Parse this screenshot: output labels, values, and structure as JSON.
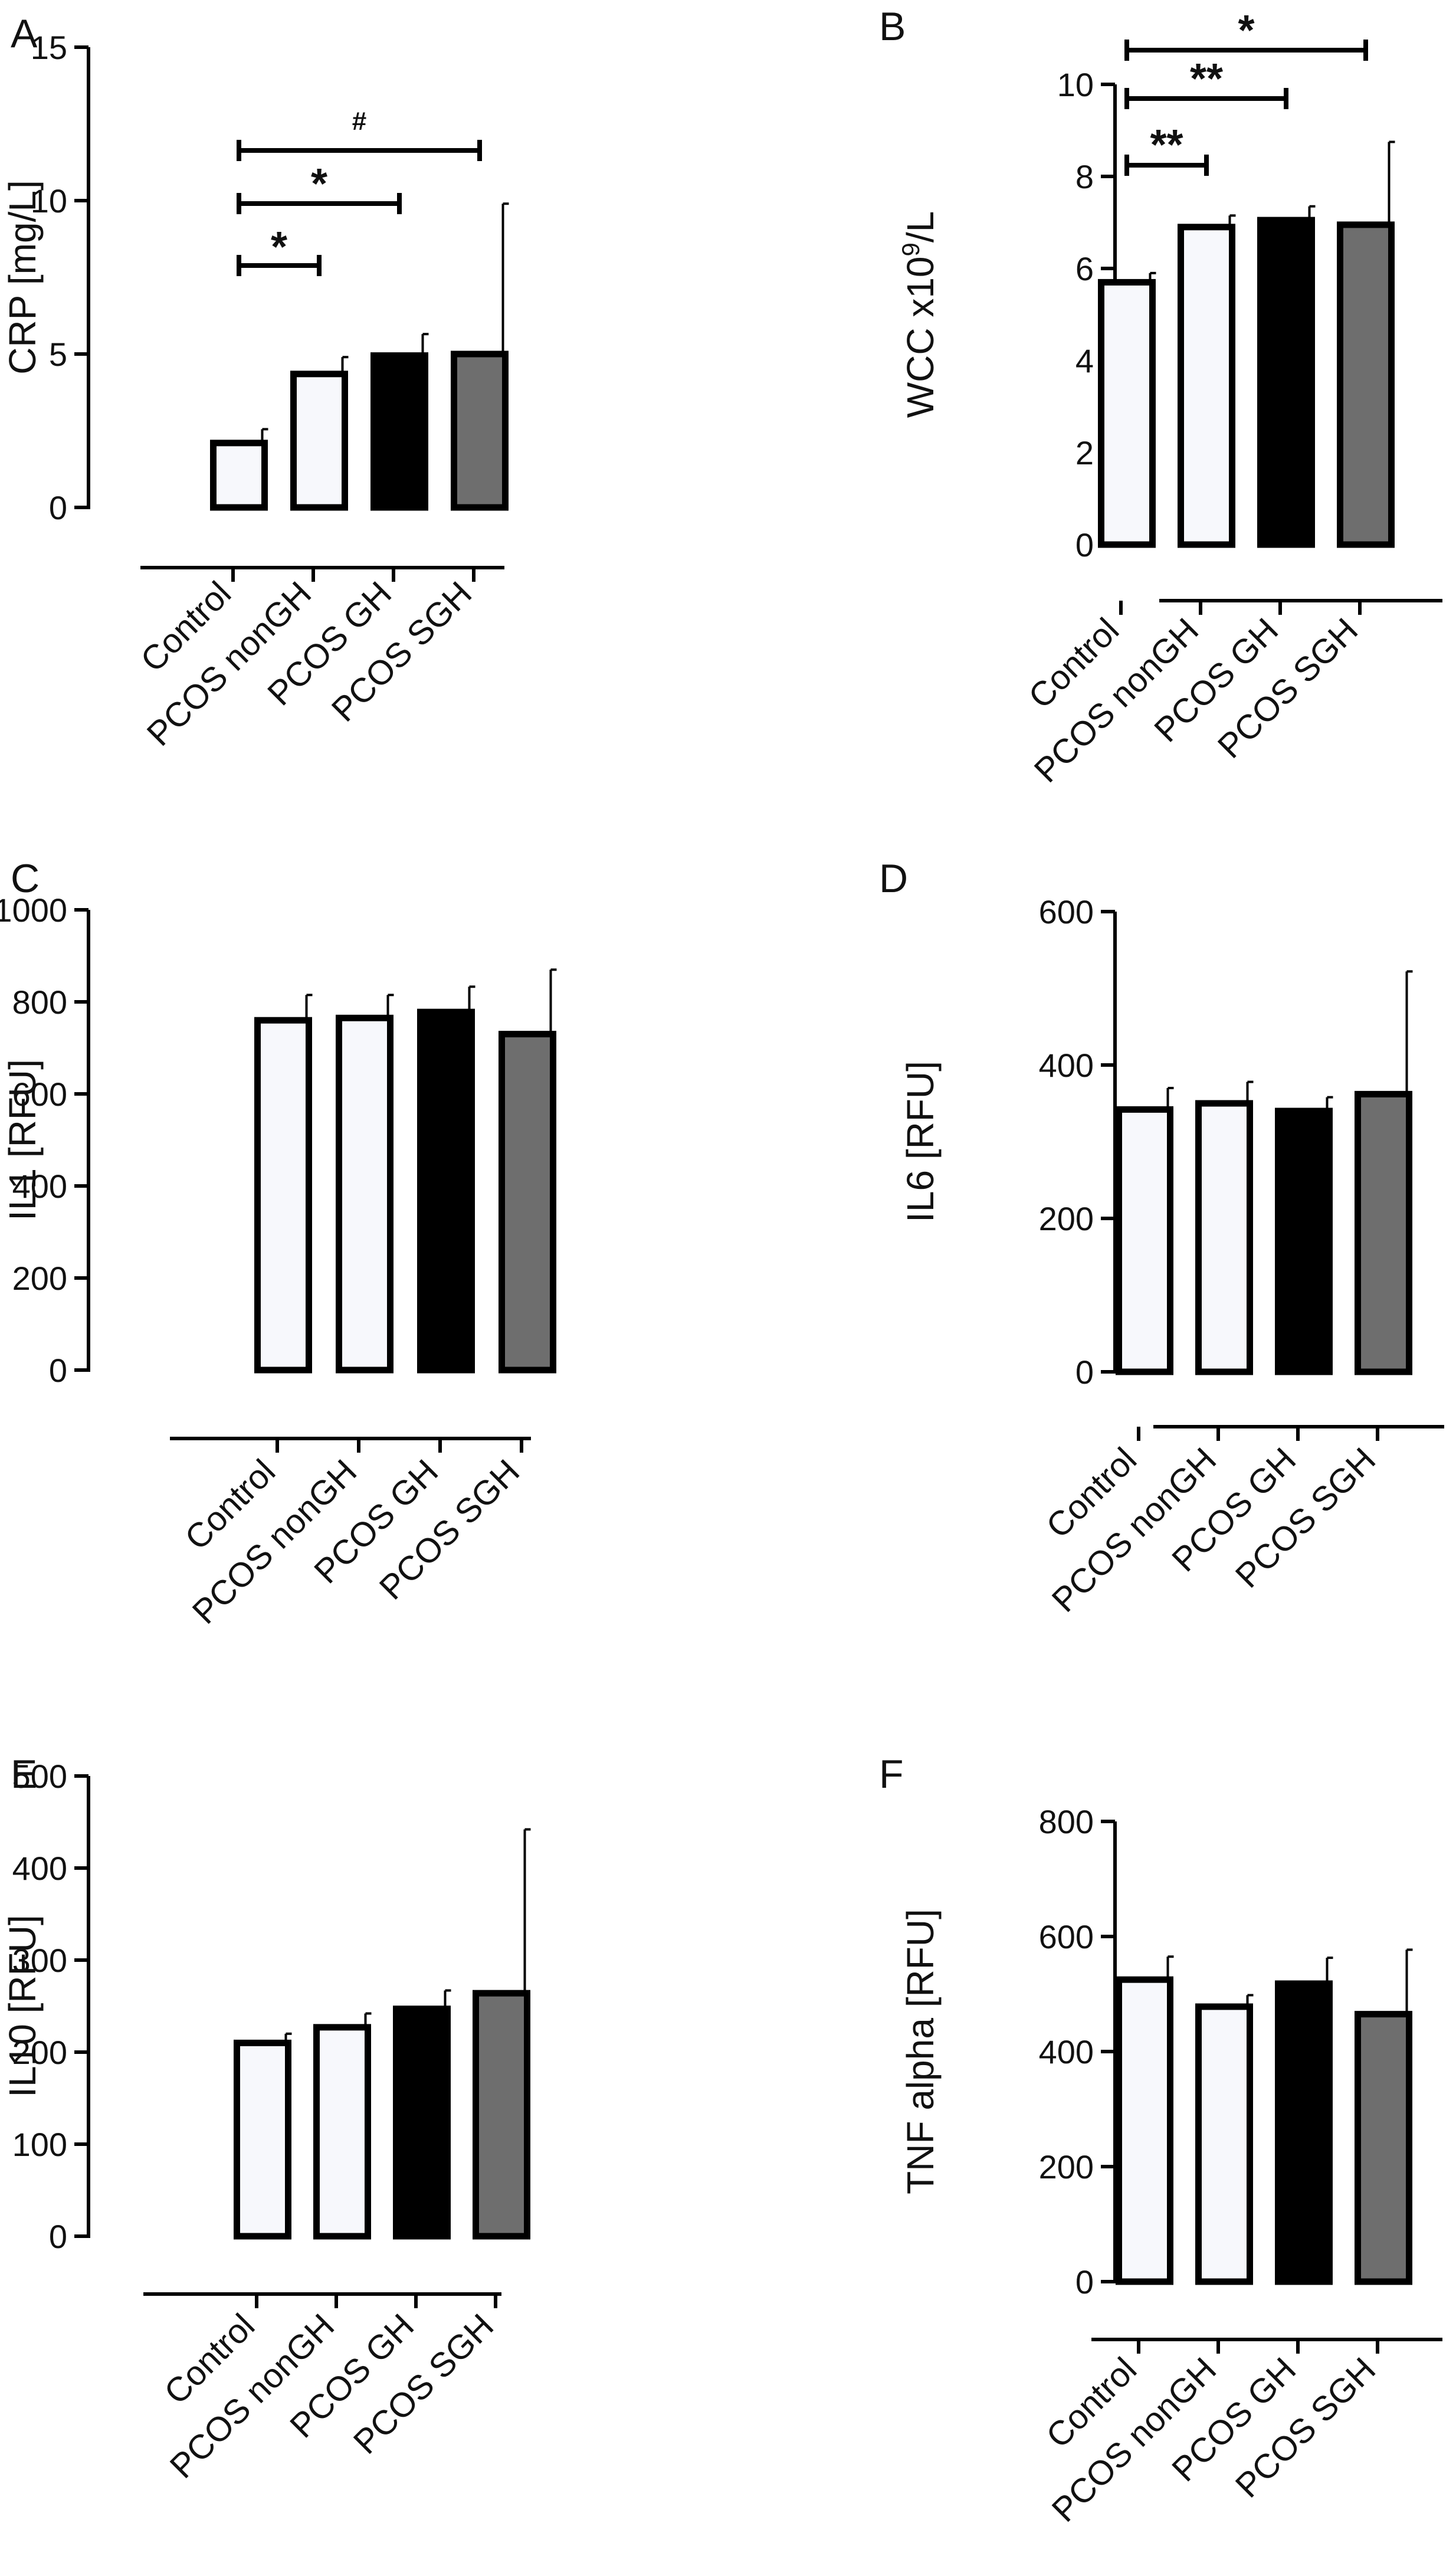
{
  "figure": {
    "categories": [
      "Control",
      "PCOS nonGH",
      "PCOS GH",
      "PCOS SGH"
    ],
    "bar_colors": [
      "#f7f8fc",
      "#f7f8fc",
      "#000000",
      "#6e6e6e"
    ],
    "stroke_color": "#000000"
  },
  "chart_data": [
    {
      "type": "bar",
      "panel_label": "A",
      "title": "",
      "xlabel": "",
      "ylabel": "CRP [mg/L]",
      "ylabel_sup": "",
      "ylabel_suffix": "",
      "ylim": [
        0,
        15
      ],
      "yticks": [
        0,
        5,
        10,
        15
      ],
      "categories": [
        "Control",
        "PCOS nonGH",
        "PCOS GH",
        "PCOS SGH"
      ],
      "values": [
        2.1,
        4.35,
        4.95,
        5.0
      ],
      "errors": [
        0.45,
        0.55,
        0.7,
        4.9
      ],
      "significance": [
        {
          "from": 0,
          "to": 1,
          "label": "*"
        },
        {
          "from": 0,
          "to": 2,
          "label": "*"
        },
        {
          "from": 0,
          "to": 3,
          "label": "#"
        }
      ]
    },
    {
      "type": "bar",
      "panel_label": "B",
      "title": "",
      "xlabel": "",
      "ylabel": "WCC x10",
      "ylabel_sup": "9",
      "ylabel_suffix": "/L",
      "ylim": [
        0,
        10
      ],
      "yticks": [
        0,
        2,
        4,
        6,
        8,
        10
      ],
      "categories": [
        "Control",
        "PCOS nonGH",
        "PCOS GH",
        "PCOS SGH"
      ],
      "values": [
        5.7,
        6.9,
        7.05,
        6.95
      ],
      "errors": [
        0.2,
        0.25,
        0.3,
        1.8
      ],
      "significance": [
        {
          "from": 0,
          "to": 1,
          "label": "**"
        },
        {
          "from": 0,
          "to": 2,
          "label": "**"
        },
        {
          "from": 0,
          "to": 3,
          "label": "*"
        }
      ]
    },
    {
      "type": "bar",
      "panel_label": "C",
      "title": "",
      "xlabel": "",
      "ylabel": "IL1 [RFU]",
      "ylabel_sup": "",
      "ylabel_suffix": "",
      "ylim": [
        0,
        1000
      ],
      "yticks": [
        0,
        200,
        400,
        600,
        800,
        1000
      ],
      "categories": [
        "Control",
        "PCOS nonGH",
        "PCOS GH",
        "PCOS SGH"
      ],
      "values": [
        760,
        765,
        778,
        730
      ],
      "errors": [
        55,
        50,
        55,
        140
      ],
      "significance": []
    },
    {
      "type": "bar",
      "panel_label": "D",
      "title": "",
      "xlabel": "",
      "ylabel": "IL6 [RFU]",
      "ylabel_sup": "",
      "ylabel_suffix": "",
      "ylim": [
        0,
        600
      ],
      "yticks": [
        0,
        200,
        400,
        600
      ],
      "categories": [
        "Control",
        "PCOS nonGH",
        "PCOS GH",
        "PCOS SGH"
      ],
      "values": [
        342,
        350,
        340,
        362
      ],
      "errors": [
        28,
        28,
        18,
        160
      ],
      "significance": []
    },
    {
      "type": "bar",
      "panel_label": "E",
      "title": "",
      "xlabel": "",
      "ylabel": "IL10 [RFU]",
      "ylabel_sup": "",
      "ylabel_suffix": "",
      "ylim": [
        0,
        500
      ],
      "yticks": [
        0,
        100,
        200,
        300,
        400,
        500
      ],
      "categories": [
        "Control",
        "PCOS nonGH",
        "PCOS GH",
        "PCOS SGH"
      ],
      "values": [
        210,
        227,
        247,
        264
      ],
      "errors": [
        10,
        15,
        20,
        178
      ],
      "significance": []
    },
    {
      "type": "bar",
      "panel_label": "F",
      "title": "",
      "xlabel": "",
      "ylabel": "TNF alpha [RFU]",
      "ylabel_sup": "",
      "ylabel_suffix": "",
      "ylim": [
        0,
        800
      ],
      "yticks": [
        0,
        200,
        400,
        600,
        800
      ],
      "categories": [
        "Control",
        "PCOS nonGH",
        "PCOS GH",
        "PCOS SGH"
      ],
      "values": [
        525,
        478,
        518,
        465
      ],
      "errors": [
        40,
        20,
        45,
        112
      ],
      "significance": []
    }
  ]
}
